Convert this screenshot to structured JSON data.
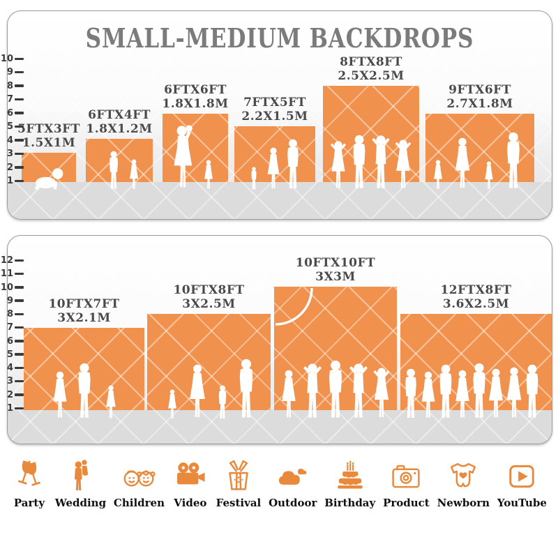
{
  "title": "SMALL-MEDIUM BACKDROPS",
  "colors": {
    "backdrop_orange": "#F0914D",
    "panel_floor_gray": "#DCDCDC",
    "title_gray": "#7B7B7B",
    "label_gray": "#4A4A4A",
    "ruler_dark": "#3A3A3A",
    "icon_orange": "#E8893C"
  },
  "panels": [
    {
      "name": "small-medium-sizes",
      "ruler_labels": [
        "1",
        "2",
        "3",
        "4",
        "5",
        "6",
        "7",
        "8",
        "9",
        "10"
      ],
      "backdrops": [
        {
          "size_ft": "5FTX3FT",
          "size_m": "1.5X1M",
          "width_ft": 5,
          "height_ft": 3,
          "people": [
            "crawling-baby"
          ]
        },
        {
          "size_ft": "6FTX4FT",
          "size_m": "1.8X1.2M",
          "width_ft": 6,
          "height_ft": 4,
          "people": [
            "boy",
            "girl"
          ]
        },
        {
          "size_ft": "6FTX6FT",
          "size_m": "1.8X1.8M",
          "width_ft": 6,
          "height_ft": 6,
          "people": [
            "woman-carrying-baby",
            "girl"
          ]
        },
        {
          "size_ft": "7FTX5FT",
          "size_m": "2.2X1.5M",
          "width_ft": 7,
          "height_ft": 5,
          "people": [
            "toddler",
            "woman",
            "man"
          ]
        },
        {
          "size_ft": "8FTX8FT",
          "size_m": "2.5X2.5M",
          "width_ft": 8,
          "height_ft": 8,
          "people": [
            "woman-posing",
            "man",
            "man-posing",
            "woman-posing"
          ]
        },
        {
          "size_ft": "9FTX6FT",
          "size_m": "2.7X1.8M",
          "width_ft": 9,
          "height_ft": 6,
          "people": [
            "girl",
            "woman",
            "girl",
            "man"
          ]
        }
      ]
    },
    {
      "name": "medium-large-sizes",
      "ruler_labels": [
        "1",
        "2",
        "3",
        "4",
        "5",
        "6",
        "7",
        "8",
        "9",
        "10",
        "11",
        "12"
      ],
      "backdrops": [
        {
          "size_ft": "10FTX7FT",
          "size_m": "3X2.1M",
          "width_ft": 10,
          "height_ft": 7,
          "people": [
            "woman",
            "man",
            "girl"
          ]
        },
        {
          "size_ft": "10FTX8FT",
          "size_m": "3X2.5M",
          "width_ft": 10,
          "height_ft": 8,
          "people": [
            "girl",
            "woman",
            "boy",
            "man"
          ]
        },
        {
          "size_ft": "10FTX10FT",
          "size_m": "3X3M",
          "width_ft": 10,
          "height_ft": 10,
          "people": [
            "woman",
            "man-posing",
            "man",
            "man-posing",
            "woman-posing"
          ]
        },
        {
          "size_ft": "12FTX8FT",
          "size_m": "3.6X2.5M",
          "width_ft": 12,
          "height_ft": 8,
          "people": [
            "man",
            "woman",
            "man",
            "woman",
            "man",
            "woman",
            "woman",
            "man"
          ]
        }
      ]
    }
  ],
  "categories": [
    {
      "label": "Party",
      "icon": "party-icon"
    },
    {
      "label": "Wedding",
      "icon": "wedding-icon"
    },
    {
      "label": "Children",
      "icon": "children-icon"
    },
    {
      "label": "Video",
      "icon": "video-icon"
    },
    {
      "label": "Festival",
      "icon": "festival-icon"
    },
    {
      "label": "Outdoor",
      "icon": "outdoor-icon"
    },
    {
      "label": "Birthday",
      "icon": "birthday-icon"
    },
    {
      "label": "Product",
      "icon": "product-icon"
    },
    {
      "label": "Newborn",
      "icon": "newborn-icon"
    },
    {
      "label": "YouTube",
      "icon": "youtube-icon"
    }
  ]
}
